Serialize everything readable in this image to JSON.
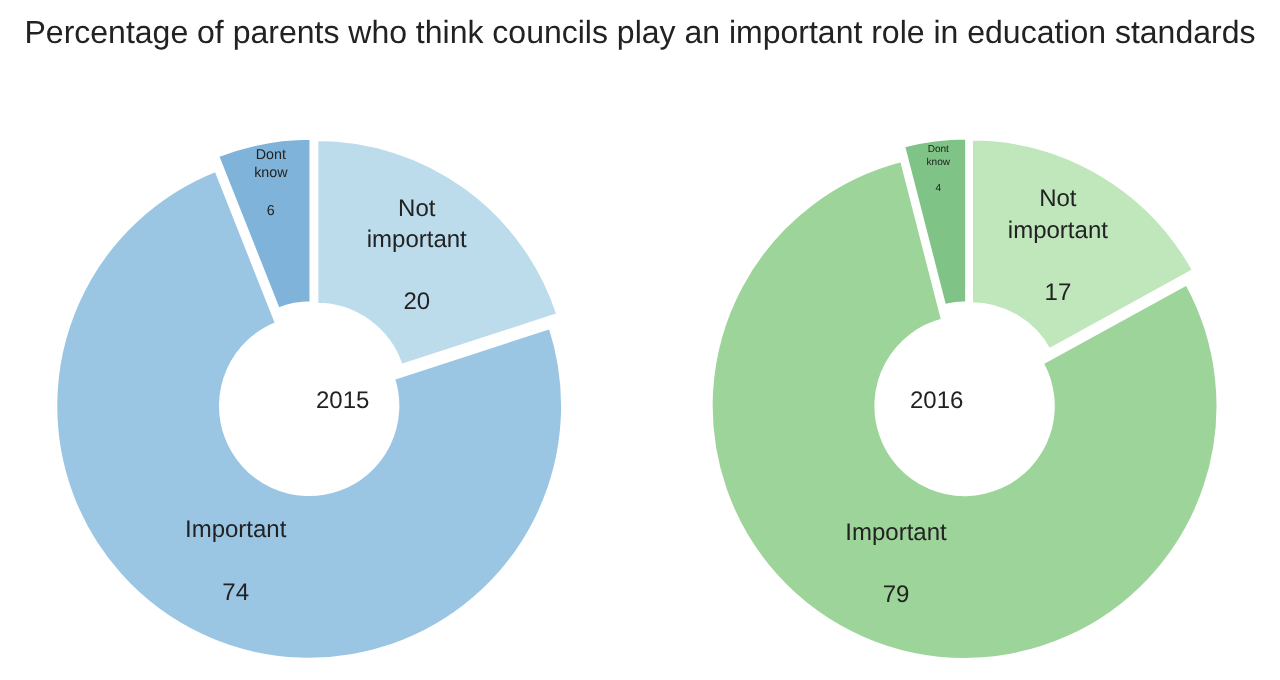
{
  "chart_data": [
    {
      "type": "donut",
      "title": "Percentage of parents who think councils play an important role in education standards",
      "categories": [
        "Not important",
        "Important",
        "Dont know"
      ],
      "values": [
        20,
        74,
        6
      ],
      "colors": [
        "#bcdcec",
        "#9ac6e4",
        "#7fb3d9"
      ],
      "data_labels": true,
      "legend": false,
      "annotations": [
        "2015"
      ]
    },
    {
      "type": "donut",
      "categories": [
        "Not important",
        "Important",
        "Dont know"
      ],
      "values": [
        17,
        79,
        4
      ],
      "colors": [
        "#c0e6bb",
        "#9dd49a",
        "#7fc387"
      ],
      "data_labels": true,
      "legend": false,
      "annotations": [
        "2016"
      ]
    }
  ]
}
